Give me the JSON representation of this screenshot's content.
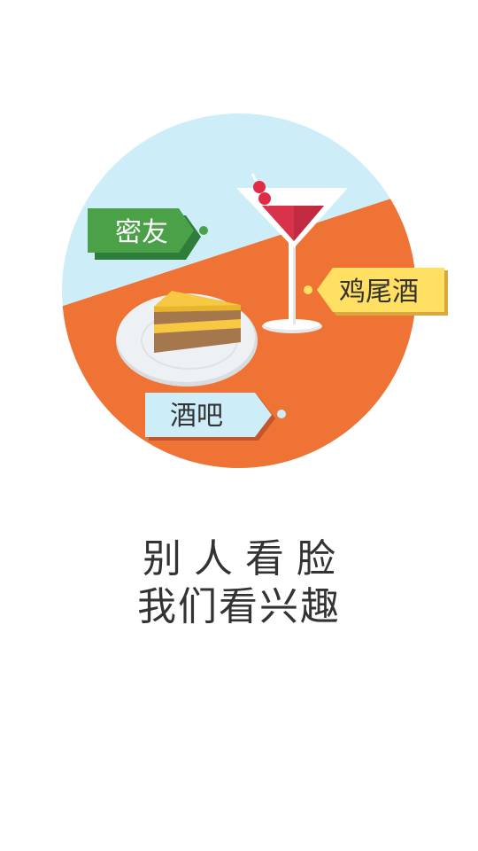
{
  "illustration": {
    "tags": {
      "friends": "密友",
      "cocktail": "鸡尾酒",
      "bar": "酒吧"
    },
    "colors": {
      "sky": "#cdeef8",
      "table": "#ee7335",
      "green_tag": "#4aa148",
      "yellow_tag": "#ffe063",
      "blue_tag": "#cdeef8",
      "drink": "#d8334b",
      "cherry": "#e22b45",
      "cake_sponge": "#a5774c",
      "cake_cream": "#f7c841"
    }
  },
  "slogan": {
    "line1": "别人看脸",
    "line2": "我们看兴趣"
  }
}
